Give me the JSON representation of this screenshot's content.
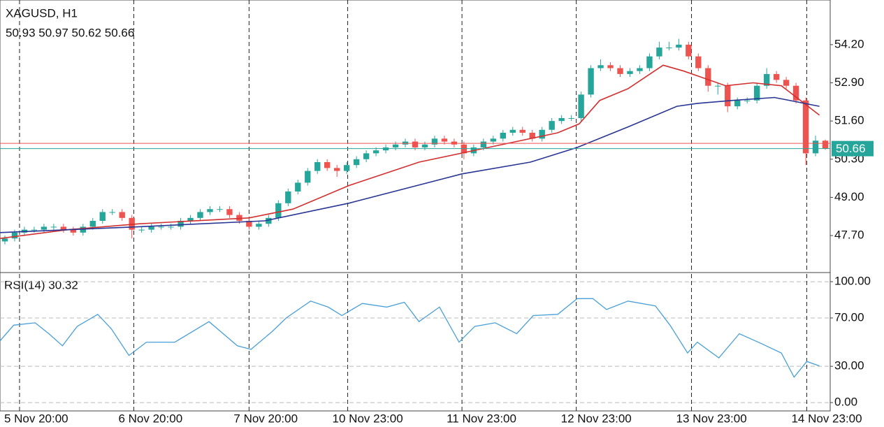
{
  "chart_data": [
    {
      "type": "candlestick",
      "title": "XAGUSD, H1",
      "subtitle": "50.93 50.97 50.62 50.66",
      "up_color": "#26a69a",
      "down_color": "#ef5350",
      "open": [
        47.5,
        47.6,
        47.8,
        47.9,
        47.9,
        48.0,
        48.0,
        47.9,
        47.8,
        48.0,
        48.2,
        48.5,
        48.5,
        48.3,
        47.9,
        47.9,
        48.0,
        48.0,
        48.0,
        48.2,
        48.3,
        48.5,
        48.6,
        48.6,
        48.4,
        48.2,
        48.0,
        48.1,
        48.3,
        48.8,
        49.2,
        49.5,
        49.9,
        50.2,
        50.0,
        49.9,
        50.1,
        50.3,
        50.5,
        50.6,
        50.7,
        50.8,
        50.9,
        50.7,
        50.8,
        51.0,
        50.9,
        50.8,
        50.5,
        50.7,
        50.9,
        51.0,
        51.2,
        51.3,
        51.2,
        51.0,
        51.3,
        51.6,
        51.7,
        51.7,
        52.5,
        53.4,
        53.5,
        53.4,
        53.2,
        53.3,
        53.4,
        53.8,
        54.1,
        54.1,
        54.2,
        53.8,
        53.4,
        52.8,
        52.8,
        52.1,
        52.3,
        52.3,
        52.8,
        53.2,
        53.0,
        52.8,
        52.3,
        50.5,
        50.93
      ],
      "high": [
        47.7,
        47.9,
        48.0,
        48.0,
        48.1,
        48.1,
        48.1,
        48.0,
        48.1,
        48.3,
        48.6,
        48.6,
        48.6,
        48.4,
        48.0,
        48.1,
        48.1,
        48.1,
        48.3,
        48.4,
        48.6,
        48.7,
        48.7,
        48.7,
        48.5,
        48.3,
        48.2,
        48.4,
        48.9,
        49.3,
        49.6,
        50.0,
        50.3,
        50.3,
        50.1,
        50.2,
        50.4,
        50.6,
        50.7,
        50.8,
        50.9,
        51.0,
        51.0,
        50.9,
        51.1,
        51.1,
        51.0,
        50.9,
        50.8,
        51.0,
        51.1,
        51.3,
        51.4,
        51.4,
        51.3,
        51.4,
        51.7,
        51.8,
        51.8,
        52.6,
        53.5,
        53.7,
        53.6,
        53.5,
        53.4,
        53.5,
        53.9,
        54.3,
        54.3,
        54.4,
        54.3,
        53.9,
        53.5,
        52.9,
        52.9,
        52.4,
        52.4,
        52.9,
        53.4,
        53.3,
        53.1,
        52.9,
        52.4,
        51.1,
        50.97
      ],
      "low": [
        47.4,
        47.5,
        47.7,
        47.8,
        47.8,
        47.9,
        47.8,
        47.7,
        47.7,
        47.9,
        48.1,
        48.4,
        48.2,
        47.6,
        47.8,
        47.8,
        47.9,
        47.9,
        47.9,
        48.1,
        48.2,
        48.4,
        48.5,
        48.3,
        48.1,
        47.9,
        47.9,
        48.0,
        48.2,
        48.7,
        49.1,
        49.4,
        49.8,
        49.9,
        49.7,
        49.8,
        50.0,
        50.2,
        50.4,
        50.5,
        50.6,
        50.7,
        50.6,
        50.6,
        50.7,
        50.8,
        50.7,
        50.3,
        50.4,
        50.6,
        50.8,
        50.9,
        51.1,
        51.1,
        50.9,
        50.9,
        51.2,
        51.5,
        51.6,
        51.6,
        52.4,
        53.3,
        53.3,
        53.1,
        53.1,
        53.2,
        53.3,
        53.7,
        54.0,
        54.0,
        53.7,
        53.3,
        52.6,
        52.5,
        51.9,
        52.0,
        52.2,
        52.2,
        52.7,
        52.9,
        52.7,
        52.2,
        50.1,
        50.4,
        50.62
      ],
      "close": [
        47.6,
        47.8,
        47.9,
        47.9,
        48.0,
        48.0,
        47.9,
        47.8,
        48.0,
        48.2,
        48.5,
        48.5,
        48.3,
        47.9,
        47.9,
        48.0,
        48.0,
        48.0,
        48.2,
        48.3,
        48.5,
        48.6,
        48.6,
        48.4,
        48.2,
        48.0,
        48.1,
        48.3,
        48.8,
        49.2,
        49.5,
        49.9,
        50.2,
        50.0,
        49.9,
        50.1,
        50.3,
        50.5,
        50.6,
        50.7,
        50.8,
        50.9,
        50.7,
        50.8,
        51.0,
        50.9,
        50.8,
        50.5,
        50.7,
        50.9,
        51.0,
        51.2,
        51.3,
        51.2,
        51.0,
        51.3,
        51.6,
        51.7,
        51.7,
        52.5,
        53.4,
        53.5,
        53.4,
        53.2,
        53.3,
        53.4,
        53.8,
        54.1,
        54.1,
        54.2,
        53.8,
        53.4,
        52.8,
        52.8,
        52.1,
        52.3,
        52.3,
        52.8,
        53.2,
        53.0,
        52.8,
        52.3,
        50.5,
        50.93,
        50.66
      ],
      "lines": [
        {
          "color": "#d32f2f",
          "x": [
            0,
            7,
            14.3,
            25.5,
            30,
            35.7,
            42.9,
            50,
            57.1,
            59.3,
            61.4,
            64.3,
            67.9,
            70,
            74.3,
            77.1,
            80,
            83.9
          ],
          "values": [
            47.6,
            47.9,
            48.1,
            48.3,
            48.6,
            49.4,
            50.2,
            50.7,
            51.2,
            51.5,
            52.3,
            52.7,
            53.5,
            53.3,
            52.8,
            52.9,
            52.8,
            51.8
          ]
        },
        {
          "color": "#283593",
          "x": [
            0,
            14.3,
            27.1,
            35.7,
            47.3,
            54.3,
            59.1,
            64.3,
            69.3,
            71.4,
            75,
            79.3,
            83.9
          ],
          "values": [
            47.8,
            48.0,
            48.2,
            48.8,
            49.8,
            50.2,
            50.7,
            51.4,
            52.1,
            52.2,
            52.3,
            52.4,
            52.1
          ]
        }
      ],
      "last_price": {
        "value": 50.66,
        "label": "50.66",
        "color": "#26a69a"
      },
      "ask_price": {
        "value": 50.84,
        "color": "#ef5350"
      },
      "xlim": [
        0,
        85
      ],
      "ylim": [
        46.44,
        55.72
      ],
      "yticks": [
        {
          "value": 54.2,
          "label": "54.20"
        },
        {
          "value": 52.9,
          "label": "52.90"
        },
        {
          "value": 51.6,
          "label": "51.60"
        },
        {
          "value": 50.3,
          "label": "50.30"
        },
        {
          "value": 49.0,
          "label": "49.00"
        },
        {
          "value": 47.7,
          "label": "47.70"
        }
      ],
      "xticks": [
        {
          "value": 2,
          "label": "5 Nov 20:00"
        },
        {
          "value": 13.7,
          "label": "6 Nov 20:00"
        },
        {
          "value": 25.5,
          "label": "7 Nov 20:00"
        },
        {
          "value": 35.6,
          "label": "10 Nov 23:00"
        },
        {
          "value": 47.3,
          "label": "11 Nov 23:00"
        },
        {
          "value": 59,
          "label": "12 Nov 23:00"
        },
        {
          "value": 70.8,
          "label": "13 Nov 23:00"
        },
        {
          "value": 82.6,
          "label": "14 Nov 23:00"
        }
      ]
    },
    {
      "type": "line",
      "title": "RSI(14) 30.32",
      "color": "#4a9fd8",
      "x": [
        0,
        1.4,
        3.6,
        5,
        6.4,
        7.9,
        10,
        11.4,
        13.2,
        15,
        17.9,
        21.4,
        24.3,
        25.7,
        27.9,
        29.3,
        31.8,
        33.6,
        35,
        37.1,
        39.6,
        41.4,
        42.9,
        45,
        47,
        48.6,
        50.7,
        52.9,
        54.6,
        57.1,
        59.1,
        60.7,
        62.1,
        64.3,
        67.1,
        68.6,
        70.4,
        71.4,
        73.6,
        75.7,
        77.9,
        80,
        81.3,
        82.6,
        83.9
      ],
      "values": [
        51,
        64,
        66,
        57,
        47,
        63,
        73,
        61,
        39,
        50,
        50,
        67,
        47,
        44,
        59,
        70,
        84,
        79,
        72,
        82,
        79,
        83,
        67,
        79,
        50,
        63,
        66,
        57,
        72,
        73,
        86,
        86,
        77,
        84,
        80,
        64,
        41,
        50,
        37,
        57,
        49,
        41,
        21,
        34,
        30.32
      ],
      "xlim": [
        0,
        85
      ],
      "ylim": [
        -6.9,
        106.4
      ],
      "yticks": [
        {
          "value": 100,
          "label": "100.00"
        },
        {
          "value": 70,
          "label": "70.00"
        },
        {
          "value": 30,
          "label": "30.00"
        },
        {
          "value": 0,
          "label": "0.00"
        }
      ],
      "grid": true
    }
  ]
}
